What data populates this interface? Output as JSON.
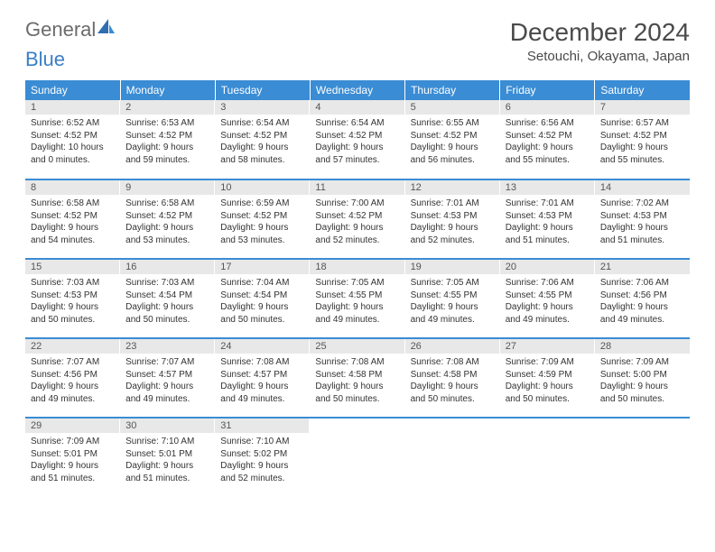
{
  "logo": {
    "part1": "General",
    "part2": "Blue"
  },
  "title": "December 2024",
  "location": "Setouchi, Okayama, Japan",
  "colors": {
    "header_bg": "#3a8cd4",
    "header_text": "#ffffff",
    "daynum_bg": "#e8e8e8",
    "border": "#3a8cd4",
    "logo_gray": "#6b6b6b",
    "logo_blue": "#3a7fc4"
  },
  "dayNames": [
    "Sunday",
    "Monday",
    "Tuesday",
    "Wednesday",
    "Thursday",
    "Friday",
    "Saturday"
  ],
  "weeks": [
    [
      {
        "n": "1",
        "sr": "Sunrise: 6:52 AM",
        "ss": "Sunset: 4:52 PM",
        "dl": "Daylight: 10 hours and 0 minutes."
      },
      {
        "n": "2",
        "sr": "Sunrise: 6:53 AM",
        "ss": "Sunset: 4:52 PM",
        "dl": "Daylight: 9 hours and 59 minutes."
      },
      {
        "n": "3",
        "sr": "Sunrise: 6:54 AM",
        "ss": "Sunset: 4:52 PM",
        "dl": "Daylight: 9 hours and 58 minutes."
      },
      {
        "n": "4",
        "sr": "Sunrise: 6:54 AM",
        "ss": "Sunset: 4:52 PM",
        "dl": "Daylight: 9 hours and 57 minutes."
      },
      {
        "n": "5",
        "sr": "Sunrise: 6:55 AM",
        "ss": "Sunset: 4:52 PM",
        "dl": "Daylight: 9 hours and 56 minutes."
      },
      {
        "n": "6",
        "sr": "Sunrise: 6:56 AM",
        "ss": "Sunset: 4:52 PM",
        "dl": "Daylight: 9 hours and 55 minutes."
      },
      {
        "n": "7",
        "sr": "Sunrise: 6:57 AM",
        "ss": "Sunset: 4:52 PM",
        "dl": "Daylight: 9 hours and 55 minutes."
      }
    ],
    [
      {
        "n": "8",
        "sr": "Sunrise: 6:58 AM",
        "ss": "Sunset: 4:52 PM",
        "dl": "Daylight: 9 hours and 54 minutes."
      },
      {
        "n": "9",
        "sr": "Sunrise: 6:58 AM",
        "ss": "Sunset: 4:52 PM",
        "dl": "Daylight: 9 hours and 53 minutes."
      },
      {
        "n": "10",
        "sr": "Sunrise: 6:59 AM",
        "ss": "Sunset: 4:52 PM",
        "dl": "Daylight: 9 hours and 53 minutes."
      },
      {
        "n": "11",
        "sr": "Sunrise: 7:00 AM",
        "ss": "Sunset: 4:52 PM",
        "dl": "Daylight: 9 hours and 52 minutes."
      },
      {
        "n": "12",
        "sr": "Sunrise: 7:01 AM",
        "ss": "Sunset: 4:53 PM",
        "dl": "Daylight: 9 hours and 52 minutes."
      },
      {
        "n": "13",
        "sr": "Sunrise: 7:01 AM",
        "ss": "Sunset: 4:53 PM",
        "dl": "Daylight: 9 hours and 51 minutes."
      },
      {
        "n": "14",
        "sr": "Sunrise: 7:02 AM",
        "ss": "Sunset: 4:53 PM",
        "dl": "Daylight: 9 hours and 51 minutes."
      }
    ],
    [
      {
        "n": "15",
        "sr": "Sunrise: 7:03 AM",
        "ss": "Sunset: 4:53 PM",
        "dl": "Daylight: 9 hours and 50 minutes."
      },
      {
        "n": "16",
        "sr": "Sunrise: 7:03 AM",
        "ss": "Sunset: 4:54 PM",
        "dl": "Daylight: 9 hours and 50 minutes."
      },
      {
        "n": "17",
        "sr": "Sunrise: 7:04 AM",
        "ss": "Sunset: 4:54 PM",
        "dl": "Daylight: 9 hours and 50 minutes."
      },
      {
        "n": "18",
        "sr": "Sunrise: 7:05 AM",
        "ss": "Sunset: 4:55 PM",
        "dl": "Daylight: 9 hours and 49 minutes."
      },
      {
        "n": "19",
        "sr": "Sunrise: 7:05 AM",
        "ss": "Sunset: 4:55 PM",
        "dl": "Daylight: 9 hours and 49 minutes."
      },
      {
        "n": "20",
        "sr": "Sunrise: 7:06 AM",
        "ss": "Sunset: 4:55 PM",
        "dl": "Daylight: 9 hours and 49 minutes."
      },
      {
        "n": "21",
        "sr": "Sunrise: 7:06 AM",
        "ss": "Sunset: 4:56 PM",
        "dl": "Daylight: 9 hours and 49 minutes."
      }
    ],
    [
      {
        "n": "22",
        "sr": "Sunrise: 7:07 AM",
        "ss": "Sunset: 4:56 PM",
        "dl": "Daylight: 9 hours and 49 minutes."
      },
      {
        "n": "23",
        "sr": "Sunrise: 7:07 AM",
        "ss": "Sunset: 4:57 PM",
        "dl": "Daylight: 9 hours and 49 minutes."
      },
      {
        "n": "24",
        "sr": "Sunrise: 7:08 AM",
        "ss": "Sunset: 4:57 PM",
        "dl": "Daylight: 9 hours and 49 minutes."
      },
      {
        "n": "25",
        "sr": "Sunrise: 7:08 AM",
        "ss": "Sunset: 4:58 PM",
        "dl": "Daylight: 9 hours and 50 minutes."
      },
      {
        "n": "26",
        "sr": "Sunrise: 7:08 AM",
        "ss": "Sunset: 4:58 PM",
        "dl": "Daylight: 9 hours and 50 minutes."
      },
      {
        "n": "27",
        "sr": "Sunrise: 7:09 AM",
        "ss": "Sunset: 4:59 PM",
        "dl": "Daylight: 9 hours and 50 minutes."
      },
      {
        "n": "28",
        "sr": "Sunrise: 7:09 AM",
        "ss": "Sunset: 5:00 PM",
        "dl": "Daylight: 9 hours and 50 minutes."
      }
    ],
    [
      {
        "n": "29",
        "sr": "Sunrise: 7:09 AM",
        "ss": "Sunset: 5:01 PM",
        "dl": "Daylight: 9 hours and 51 minutes."
      },
      {
        "n": "30",
        "sr": "Sunrise: 7:10 AM",
        "ss": "Sunset: 5:01 PM",
        "dl": "Daylight: 9 hours and 51 minutes."
      },
      {
        "n": "31",
        "sr": "Sunrise: 7:10 AM",
        "ss": "Sunset: 5:02 PM",
        "dl": "Daylight: 9 hours and 52 minutes."
      },
      null,
      null,
      null,
      null
    ]
  ]
}
